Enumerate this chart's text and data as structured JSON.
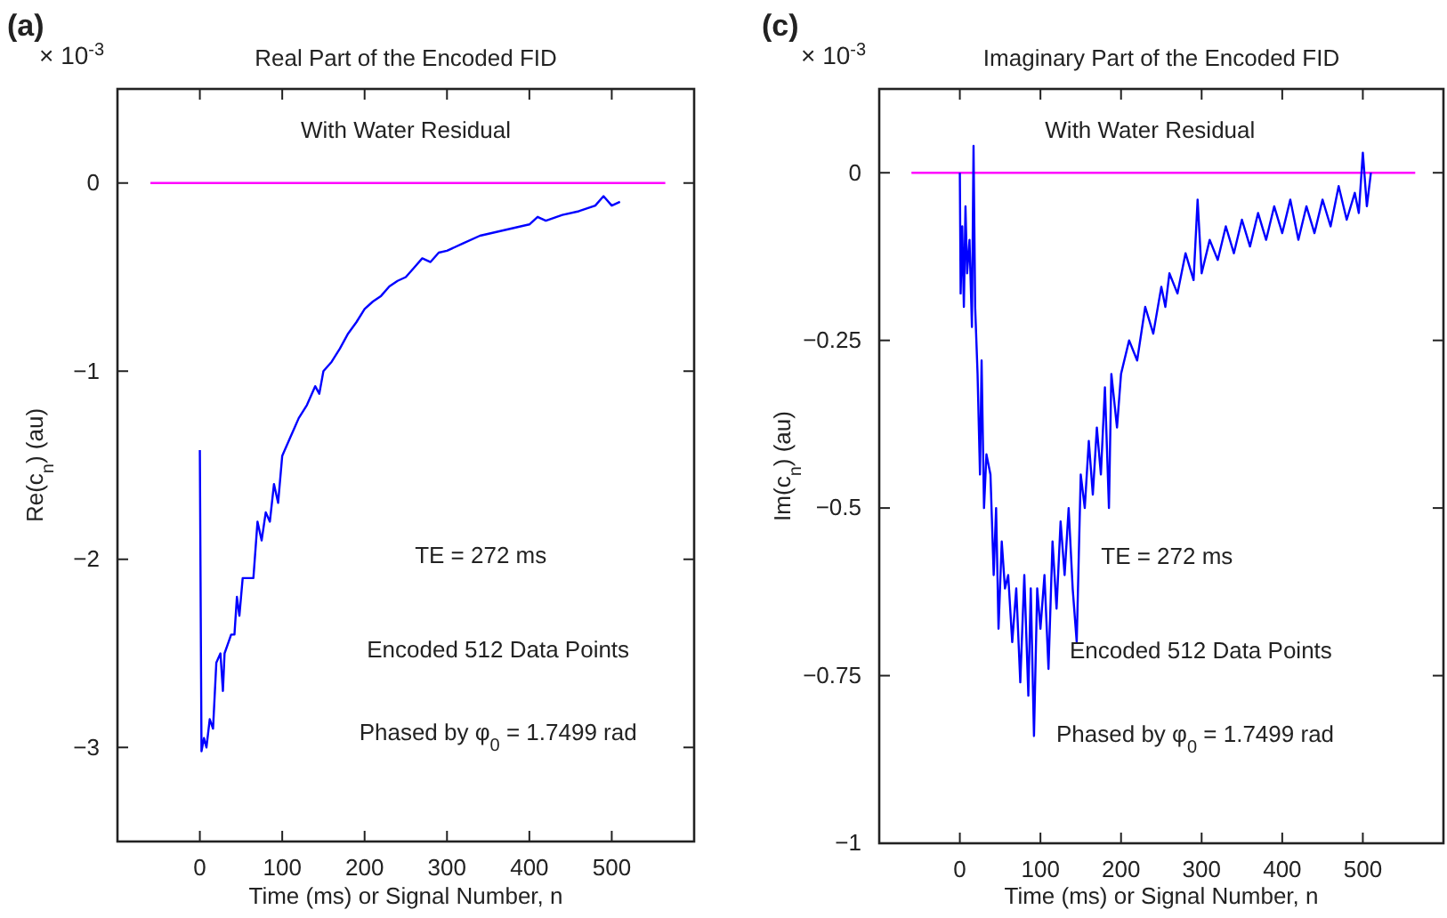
{
  "chart_data": [
    {
      "type": "line",
      "title": "Real Part of the Encoded FID",
      "xlabel": "Time (ms) or Signal Number, n",
      "ylabel": "Re(c$_{n}$) (au)",
      "xlim": [
        -100,
        600
      ],
      "xticks": [
        0,
        100,
        200,
        300,
        400,
        500
      ],
      "ylim": [
        -3.5,
        0.5
      ],
      "yticks": [
        -3,
        -2,
        -1,
        0
      ],
      "marker": "none",
      "line_style": "solid",
      "annotations": [
        "(a)",
        "× 10$^{-3}$",
        "With Water Residual",
        "TE = 272 ms",
        "Encoded 512 Data Points",
        "Phased by φ$_{0}$ = 1.7499 rad"
      ],
      "series": [
        {
          "color": "#ff00ff",
          "x": [
            -60,
            565
          ],
          "values": [
            0,
            0
          ]
        },
        {
          "color": "#0000ff",
          "x": [
            0,
            2,
            5,
            8,
            12,
            16,
            20,
            25,
            28,
            30,
            38,
            42,
            45,
            48,
            52,
            58,
            65,
            70,
            75,
            80,
            85,
            90,
            95,
            100,
            110,
            115,
            120,
            130,
            140,
            145,
            150,
            160,
            170,
            180,
            190,
            200,
            210,
            220,
            230,
            240,
            250,
            260,
            270,
            280,
            290,
            300,
            320,
            340,
            360,
            380,
            400,
            410,
            420,
            440,
            460,
            480,
            490,
            500,
            510
          ],
          "values": [
            -1.42,
            -3.02,
            -2.95,
            -3.0,
            -2.85,
            -2.9,
            -2.55,
            -2.5,
            -2.7,
            -2.5,
            -2.4,
            -2.4,
            -2.2,
            -2.3,
            -2.1,
            -2.1,
            -2.1,
            -1.8,
            -1.9,
            -1.75,
            -1.8,
            -1.6,
            -1.7,
            -1.45,
            -1.35,
            -1.3,
            -1.25,
            -1.18,
            -1.08,
            -1.12,
            -1.0,
            -0.95,
            -0.88,
            -0.8,
            -0.74,
            -0.67,
            -0.63,
            -0.6,
            -0.55,
            -0.52,
            -0.5,
            -0.45,
            -0.4,
            -0.42,
            -0.37,
            -0.36,
            -0.32,
            -0.28,
            -0.26,
            -0.24,
            -0.22,
            -0.18,
            -0.2,
            -0.17,
            -0.15,
            -0.12,
            -0.07,
            -0.12,
            -0.1
          ]
        }
      ]
    },
    {
      "type": "line",
      "title": "Imaginary Part of the Encoded FID",
      "xlabel": "Time (ms) or Signal Number, n",
      "ylabel": "Im(c$_{n}$) (au)",
      "xlim": [
        -100,
        600
      ],
      "xticks": [
        0,
        100,
        200,
        300,
        400,
        500
      ],
      "ylim": [
        -1,
        0.125
      ],
      "yticks": [
        -1,
        -0.75,
        -0.5,
        -0.25,
        0
      ],
      "marker": "none",
      "line_style": "solid",
      "annotations": [
        "(c)",
        "× 10$^{-3}$",
        "With Water Residual",
        "TE = 272 ms",
        "Encoded 512 Data Points",
        "Phased by φ$_{0}$ = 1.7499 rad"
      ],
      "series": [
        {
          "color": "#ff00ff",
          "x": [
            -60,
            565
          ],
          "values": [
            0,
            0
          ]
        },
        {
          "color": "#0000ff",
          "x": [
            0,
            1,
            3,
            5,
            7,
            9,
            12,
            15,
            17,
            19,
            22,
            25,
            27,
            30,
            33,
            38,
            42,
            45,
            48,
            52,
            56,
            60,
            65,
            70,
            75,
            80,
            85,
            88,
            92,
            96,
            100,
            105,
            110,
            115,
            120,
            125,
            130,
            135,
            140,
            145,
            150,
            155,
            160,
            165,
            170,
            175,
            180,
            185,
            188,
            195,
            200,
            210,
            220,
            230,
            240,
            250,
            255,
            260,
            270,
            280,
            290,
            295,
            300,
            310,
            320,
            330,
            340,
            350,
            360,
            370,
            380,
            390,
            400,
            410,
            420,
            430,
            440,
            450,
            460,
            470,
            480,
            490,
            495,
            500,
            505,
            510
          ],
          "values": [
            0,
            -0.18,
            -0.08,
            -0.2,
            -0.05,
            -0.15,
            -0.1,
            -0.23,
            0.04,
            -0.2,
            -0.3,
            -0.45,
            -0.28,
            -0.5,
            -0.42,
            -0.45,
            -0.6,
            -0.5,
            -0.68,
            -0.55,
            -0.62,
            -0.6,
            -0.7,
            -0.62,
            -0.76,
            -0.6,
            -0.78,
            -0.62,
            -0.84,
            -0.62,
            -0.68,
            -0.6,
            -0.74,
            -0.55,
            -0.65,
            -0.52,
            -0.6,
            -0.5,
            -0.62,
            -0.7,
            -0.45,
            -0.5,
            -0.4,
            -0.48,
            -0.38,
            -0.45,
            -0.32,
            -0.5,
            -0.3,
            -0.38,
            -0.3,
            -0.25,
            -0.28,
            -0.2,
            -0.24,
            -0.17,
            -0.2,
            -0.15,
            -0.18,
            -0.12,
            -0.16,
            -0.04,
            -0.15,
            -0.1,
            -0.13,
            -0.08,
            -0.12,
            -0.07,
            -0.11,
            -0.06,
            -0.1,
            -0.05,
            -0.09,
            -0.04,
            -0.1,
            -0.05,
            -0.09,
            -0.04,
            -0.08,
            -0.02,
            -0.07,
            -0.03,
            -0.06,
            0.03,
            -0.05,
            0
          ]
        }
      ]
    }
  ]
}
